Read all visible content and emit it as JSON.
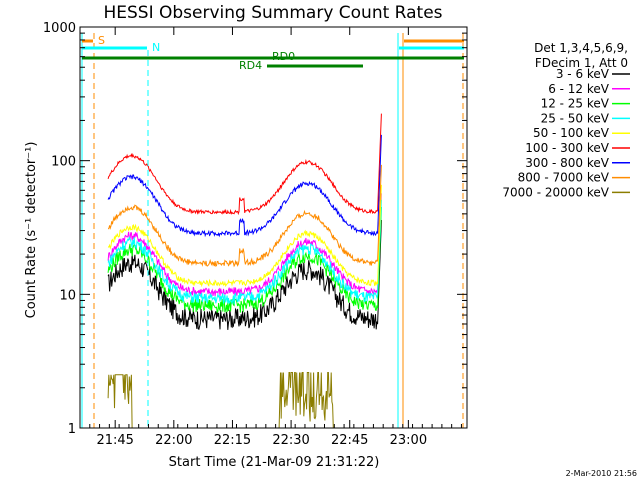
{
  "chart_data": {
    "type": "line",
    "title": "HESSI Observing Summary Count Rates",
    "xlabel": "Start Time (21-Mar-09 21:31:22)",
    "ylabel": "Count Rate (s⁻¹ detector⁻¹)",
    "yscale": "log",
    "ylim": [
      1,
      1000
    ],
    "xlim_min": [
      21.6,
      23.25
    ],
    "x_ticks": [
      {
        "min": 21.75,
        "label": "21:45"
      },
      {
        "min": 22.0,
        "label": "22:00"
      },
      {
        "min": 22.25,
        "label": "22:15"
      },
      {
        "min": 22.5,
        "label": "22:30"
      },
      {
        "min": 22.75,
        "label": "22:45"
      },
      {
        "min": 23.0,
        "label": "23:00"
      }
    ],
    "y_ticks": [
      {
        "value": 1,
        "label": "1"
      },
      {
        "value": 10,
        "label": "10"
      },
      {
        "value": 100,
        "label": "100"
      },
      {
        "value": 1000,
        "label": "1000"
      }
    ],
    "legend_header": [
      "Det 1,3,4,5,6,9,",
      "FDecim 1, Att 0"
    ],
    "legend_position": "right",
    "grid": false,
    "series": [
      {
        "name": "3 - 6 keV",
        "color": "#000000",
        "base": 12,
        "noise": 0.18
      },
      {
        "name": "6 - 12 keV",
        "color": "#ff00ff",
        "base": 19,
        "noise": 0.08
      },
      {
        "name": "12 - 25 keV",
        "color": "#00ff00",
        "base": 15,
        "noise": 0.12
      },
      {
        "name": "25 - 50 keV",
        "color": "#00ffff",
        "base": 17,
        "noise": 0.1
      },
      {
        "name": "50 - 100 keV",
        "color": "#ffff00",
        "base": 22,
        "noise": 0.05
      },
      {
        "name": "100 - 300 keV",
        "color": "#ff0000",
        "base": 75,
        "noise": 0.03
      },
      {
        "name": "300 - 800 keV",
        "color": "#0000ff",
        "base": 52,
        "noise": 0.04
      },
      {
        "name": "800 - 7000 keV",
        "color": "#ff8c00",
        "base": 31,
        "noise": 0.05
      },
      {
        "name": "7000 - 20000 keV",
        "color": "#8b7d00",
        "base": 1.8,
        "noise": 0.6
      }
    ],
    "annotations": [
      {
        "label": "S",
        "color": "#ff8c00"
      },
      {
        "label": "N",
        "color": "#00ffff"
      },
      {
        "label": "RD0",
        "color": "#008000"
      },
      {
        "label": "RD4",
        "color": "#008000"
      }
    ],
    "footer": "2-Mar-2010 21:56"
  }
}
